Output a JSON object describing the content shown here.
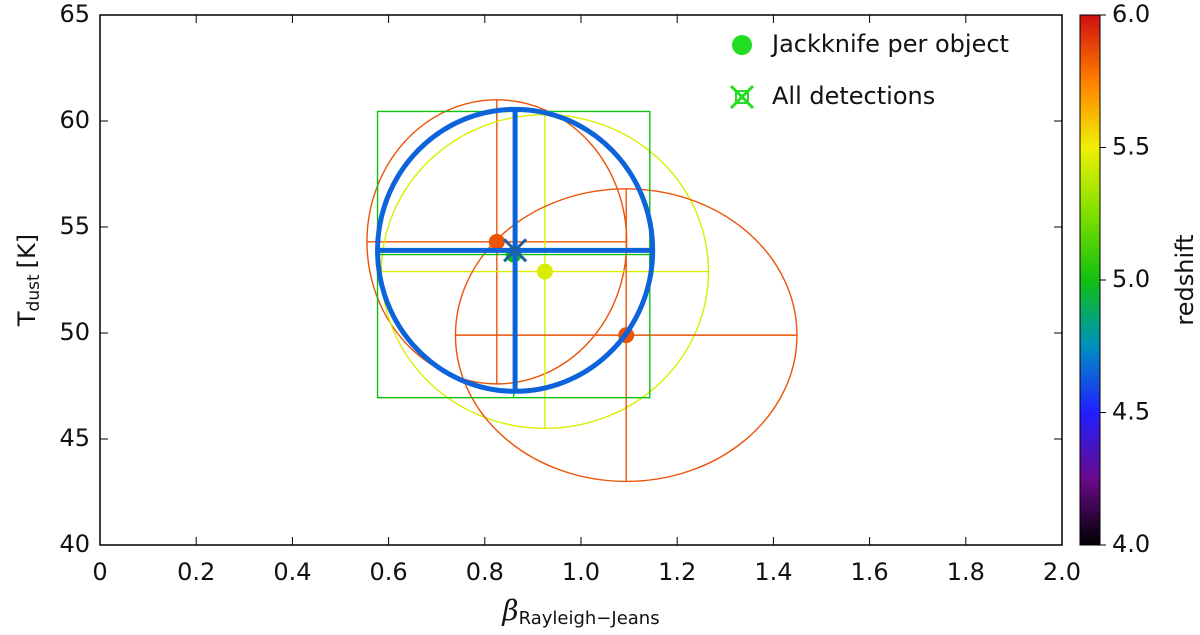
{
  "chart_data": {
    "type": "scatter",
    "xlabel": {
      "symbol": "β",
      "subscript": "Rayleigh−Jeans"
    },
    "ylabel": {
      "symbol": "T",
      "subscript": "dust",
      "unit": "[K]"
    },
    "xlim": [
      0,
      2
    ],
    "ylim": [
      40,
      65
    ],
    "xticks": [
      0,
      0.2,
      0.4,
      0.6,
      0.8,
      {
        "value": 1,
        "label": "1.0"
      },
      1.2,
      1.4,
      1.6,
      1.8,
      {
        "value": 2,
        "label": "2.0"
      }
    ],
    "yticks": [
      40,
      45,
      50,
      55,
      60,
      65
    ],
    "legend": "upper right",
    "series": [
      {
        "name": "Jackknife per object",
        "color": "#22dd22",
        "marker": "circle",
        "x": [
          0.825,
          0.925,
          1.094,
          0.86
        ],
        "y": [
          54.3,
          52.9,
          49.9,
          53.7
        ],
        "xerr": [
          0.27,
          0.34,
          0.355,
          0.283
        ],
        "yerr": [
          6.7,
          7.4,
          6.9,
          6.75
        ],
        "redshift": [
          5.85,
          5.45,
          5.85,
          5.0
        ],
        "error_shape": [
          "ellipse",
          "ellipse",
          "ellipse",
          "box"
        ]
      },
      {
        "name": "All detections",
        "color": "#22dd22",
        "marker": "x",
        "x": [
          0.863
        ],
        "y": [
          53.9
        ],
        "xerr": [
          0.286
        ],
        "yerr": [
          6.65
        ],
        "redshift": [
          4.65
        ],
        "error_shape": [
          "ellipse"
        ]
      }
    ],
    "colorbar": {
      "label": "redshift",
      "lim": [
        4,
        6
      ],
      "ticks": [
        {
          "value": 4,
          "label": "4.0"
        },
        4.5,
        {
          "value": 5,
          "label": "5.0"
        },
        5.5,
        {
          "value": 6,
          "label": "6.0"
        }
      ],
      "cmap": [
        "#000000",
        "#6a0a8a",
        "#2020ff",
        "#0090c0",
        "#10c010",
        "#80e000",
        "#f0f000",
        "#ff8000",
        "#d01010"
      ]
    }
  }
}
